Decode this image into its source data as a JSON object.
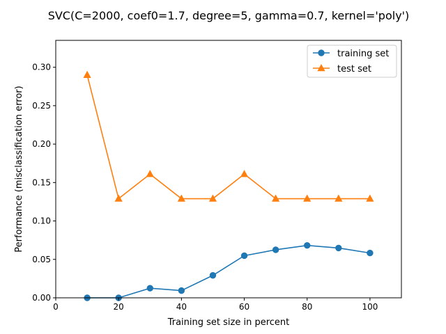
{
  "chart_data": {
    "type": "line",
    "title": "SVC(C=2000, coef0=1.7, degree=5, gamma=0.7, kernel='poly')",
    "xlabel": "Training set size in percent",
    "ylabel": "Performance (misclassification error)",
    "xlim": [
      0,
      110
    ],
    "ylim": [
      0,
      0.335
    ],
    "xticks": [
      0,
      20,
      40,
      60,
      80,
      100
    ],
    "xtick_labels": [
      "0",
      "20",
      "40",
      "60",
      "80",
      "100"
    ],
    "yticks": [
      0.0,
      0.05,
      0.1,
      0.15,
      0.2,
      0.25,
      0.3
    ],
    "ytick_labels": [
      "0.00",
      "0.05",
      "0.10",
      "0.15",
      "0.20",
      "0.25",
      "0.30"
    ],
    "grid": false,
    "legend_position": "top-right",
    "x": [
      10,
      20,
      30,
      40,
      50,
      60,
      70,
      80,
      90,
      100
    ],
    "series": [
      {
        "name": "training set",
        "color": "#1f77b4",
        "marker": "circle",
        "values": [
          0.0,
          0.0,
          0.0125,
          0.0094,
          0.0292,
          0.0548,
          0.0625,
          0.0682,
          0.0648,
          0.0583
        ]
      },
      {
        "name": "test set",
        "color": "#ff7f0e",
        "marker": "triangle",
        "values": [
          0.29,
          0.129,
          0.161,
          0.129,
          0.129,
          0.161,
          0.129,
          0.129,
          0.129,
          0.129
        ]
      }
    ]
  }
}
